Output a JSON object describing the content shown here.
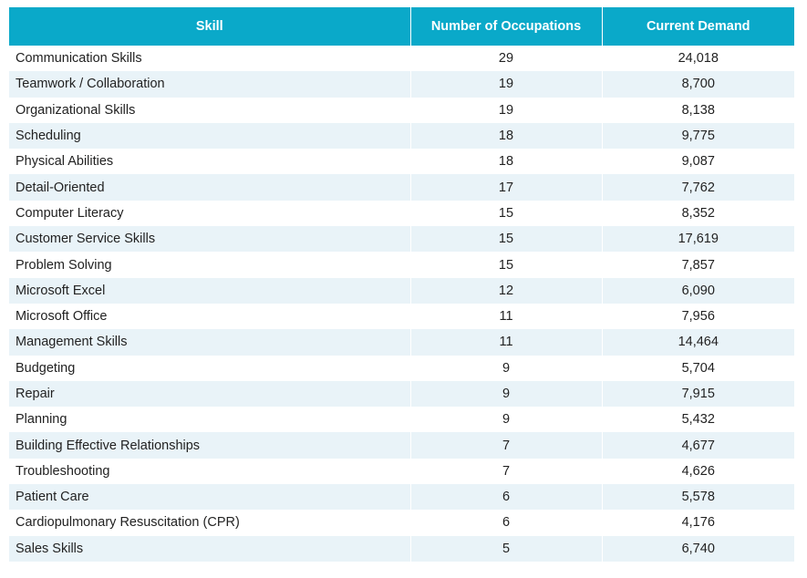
{
  "table": {
    "headers": [
      "Skill",
      "Number of Occupations",
      "Current Demand"
    ],
    "rows": [
      [
        "Communication Skills",
        "29",
        "24,018"
      ],
      [
        "Teamwork / Collaboration",
        "19",
        "8,700"
      ],
      [
        "Organizational Skills",
        "19",
        "8,138"
      ],
      [
        "Scheduling",
        "18",
        "9,775"
      ],
      [
        "Physical Abilities",
        "18",
        "9,087"
      ],
      [
        "Detail-Oriented",
        "17",
        "7,762"
      ],
      [
        "Computer Literacy",
        "15",
        "8,352"
      ],
      [
        "Customer Service Skills",
        "15",
        "17,619"
      ],
      [
        "Problem Solving",
        "15",
        "7,857"
      ],
      [
        "Microsoft Excel",
        "12",
        "6,090"
      ],
      [
        "Microsoft Office",
        "11",
        "7,956"
      ],
      [
        "Management Skills",
        "11",
        "14,464"
      ],
      [
        "Budgeting",
        "9",
        "5,704"
      ],
      [
        "Repair",
        "9",
        "7,915"
      ],
      [
        "Planning",
        "9",
        "5,432"
      ],
      [
        "Building Effective Relationships",
        "7",
        "4,677"
      ],
      [
        "Troubleshooting",
        "7",
        "4,626"
      ],
      [
        "Patient Care",
        "6",
        "5,578"
      ],
      [
        "Cardiopulmonary Resuscitation (CPR)",
        "6",
        "4,176"
      ],
      [
        "Sales Skills",
        "5",
        "6,740"
      ]
    ]
  },
  "colors": {
    "header_bg": "#0aa9c9",
    "header_text": "#ffffff",
    "stripe_bg": "#e9f3f8"
  }
}
